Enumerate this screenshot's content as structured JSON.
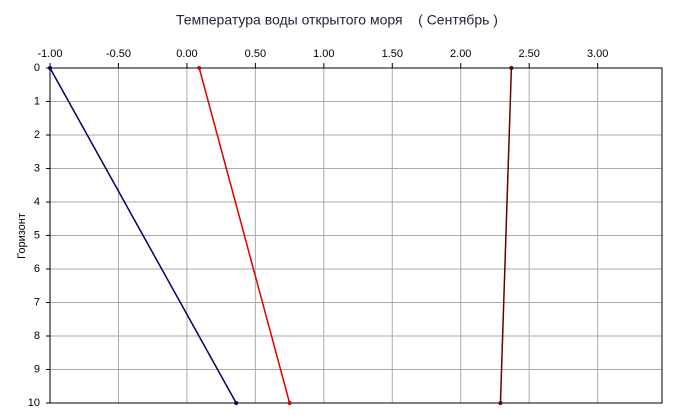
{
  "chart_data": {
    "type": "line",
    "title": "Температура воды открытого моря    ( Сентябрь )",
    "y_label": "Горизонт",
    "xlim": [
      -1,
      3.47
    ],
    "xticks": [
      {
        "value": -1,
        "label": "-1.00"
      },
      {
        "value": -0.5,
        "label": "-0.50"
      },
      {
        "value": 0,
        "label": "0.00"
      },
      {
        "value": 0.5,
        "label": "0.50"
      },
      {
        "value": 1,
        "label": "1.00"
      },
      {
        "value": 1.5,
        "label": "1.50"
      },
      {
        "value": 2,
        "label": "2.00"
      },
      {
        "value": 2.5,
        "label": "2.50"
      },
      {
        "value": 3,
        "label": "3.00"
      }
    ],
    "ylim": [
      0,
      10
    ],
    "yticks": [
      0,
      1,
      2,
      3,
      4,
      5,
      6,
      7,
      8,
      9,
      10
    ],
    "y_inverted": true,
    "grid": true,
    "series": [
      {
        "color": "#000066",
        "x": [
          -1,
          0.36
        ],
        "values": [
          0,
          10
        ]
      },
      {
        "color": "#dd0000",
        "x": [
          0.09,
          0.75
        ],
        "values": [
          0,
          10
        ]
      },
      {
        "color": "#660000",
        "x": [
          2.37,
          2.29
        ],
        "values": [
          0,
          10
        ]
      }
    ]
  }
}
